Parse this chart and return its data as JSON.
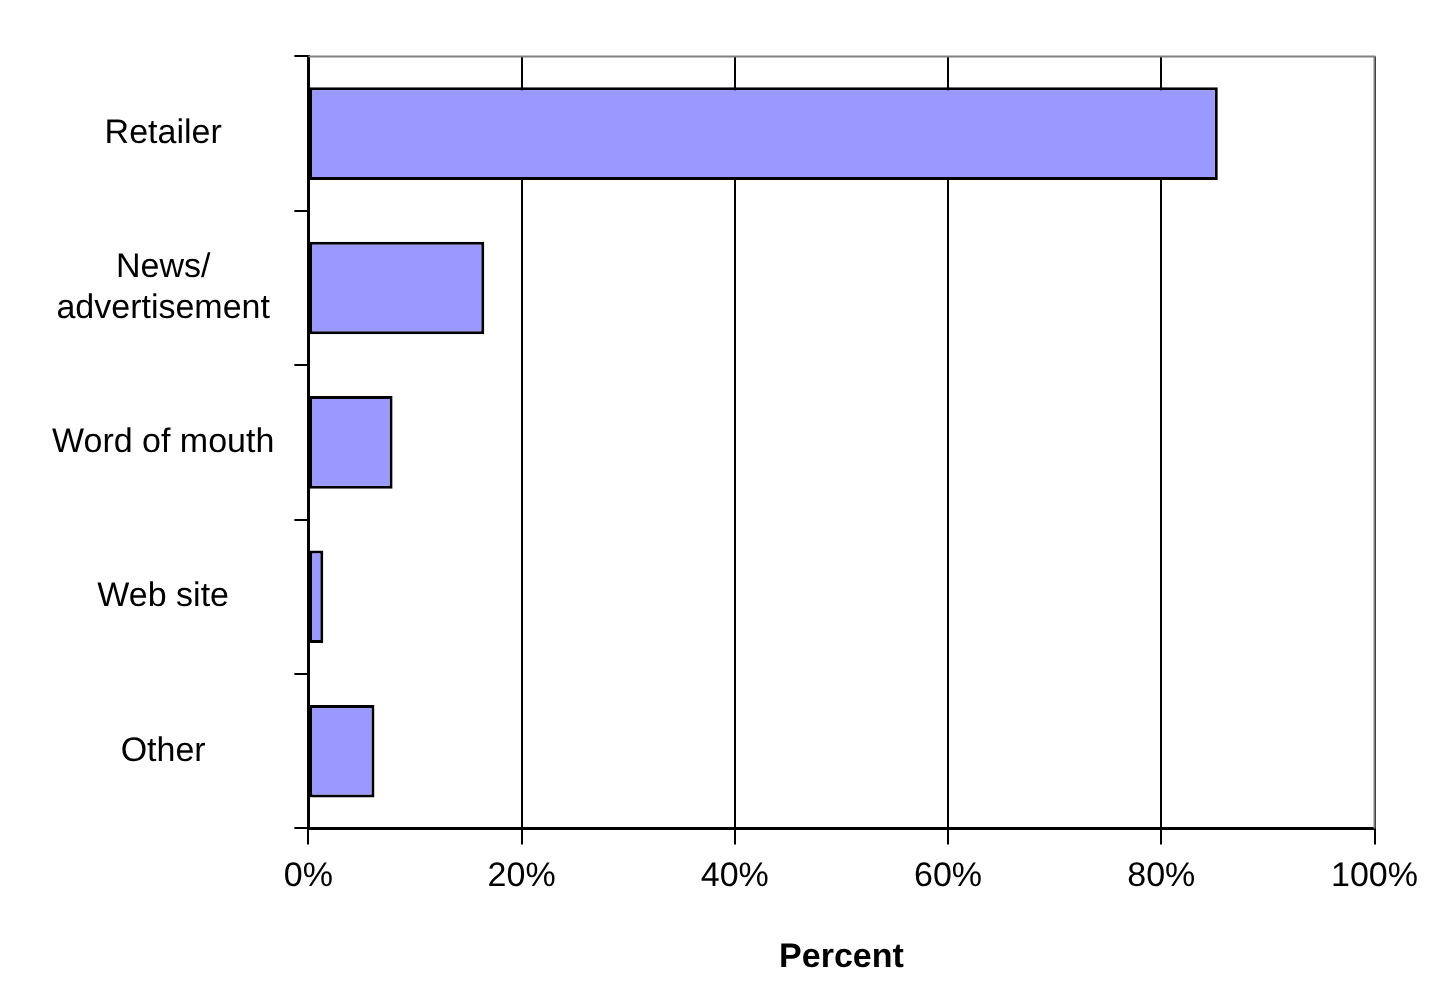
{
  "chart_data": {
    "type": "bar",
    "orientation": "horizontal",
    "xlabel": "Percent",
    "categories": [
      "Retailer",
      "News/\nadvertisement",
      "Word of mouth",
      "Web site",
      "Other"
    ],
    "values": [
      85.3,
      16.5,
      7.9,
      1.4,
      6.2
    ],
    "color": "#9999ff",
    "xlim": [
      0,
      100
    ],
    "xticks": [
      {
        "value": 0,
        "label": "0%"
      },
      {
        "value": 20,
        "label": "20%"
      },
      {
        "value": 40,
        "label": "40%"
      },
      {
        "value": 60,
        "label": "60%"
      },
      {
        "value": 80,
        "label": "80%"
      },
      {
        "value": 100,
        "label": "100%"
      }
    ],
    "grid": "x",
    "legend": false
  }
}
